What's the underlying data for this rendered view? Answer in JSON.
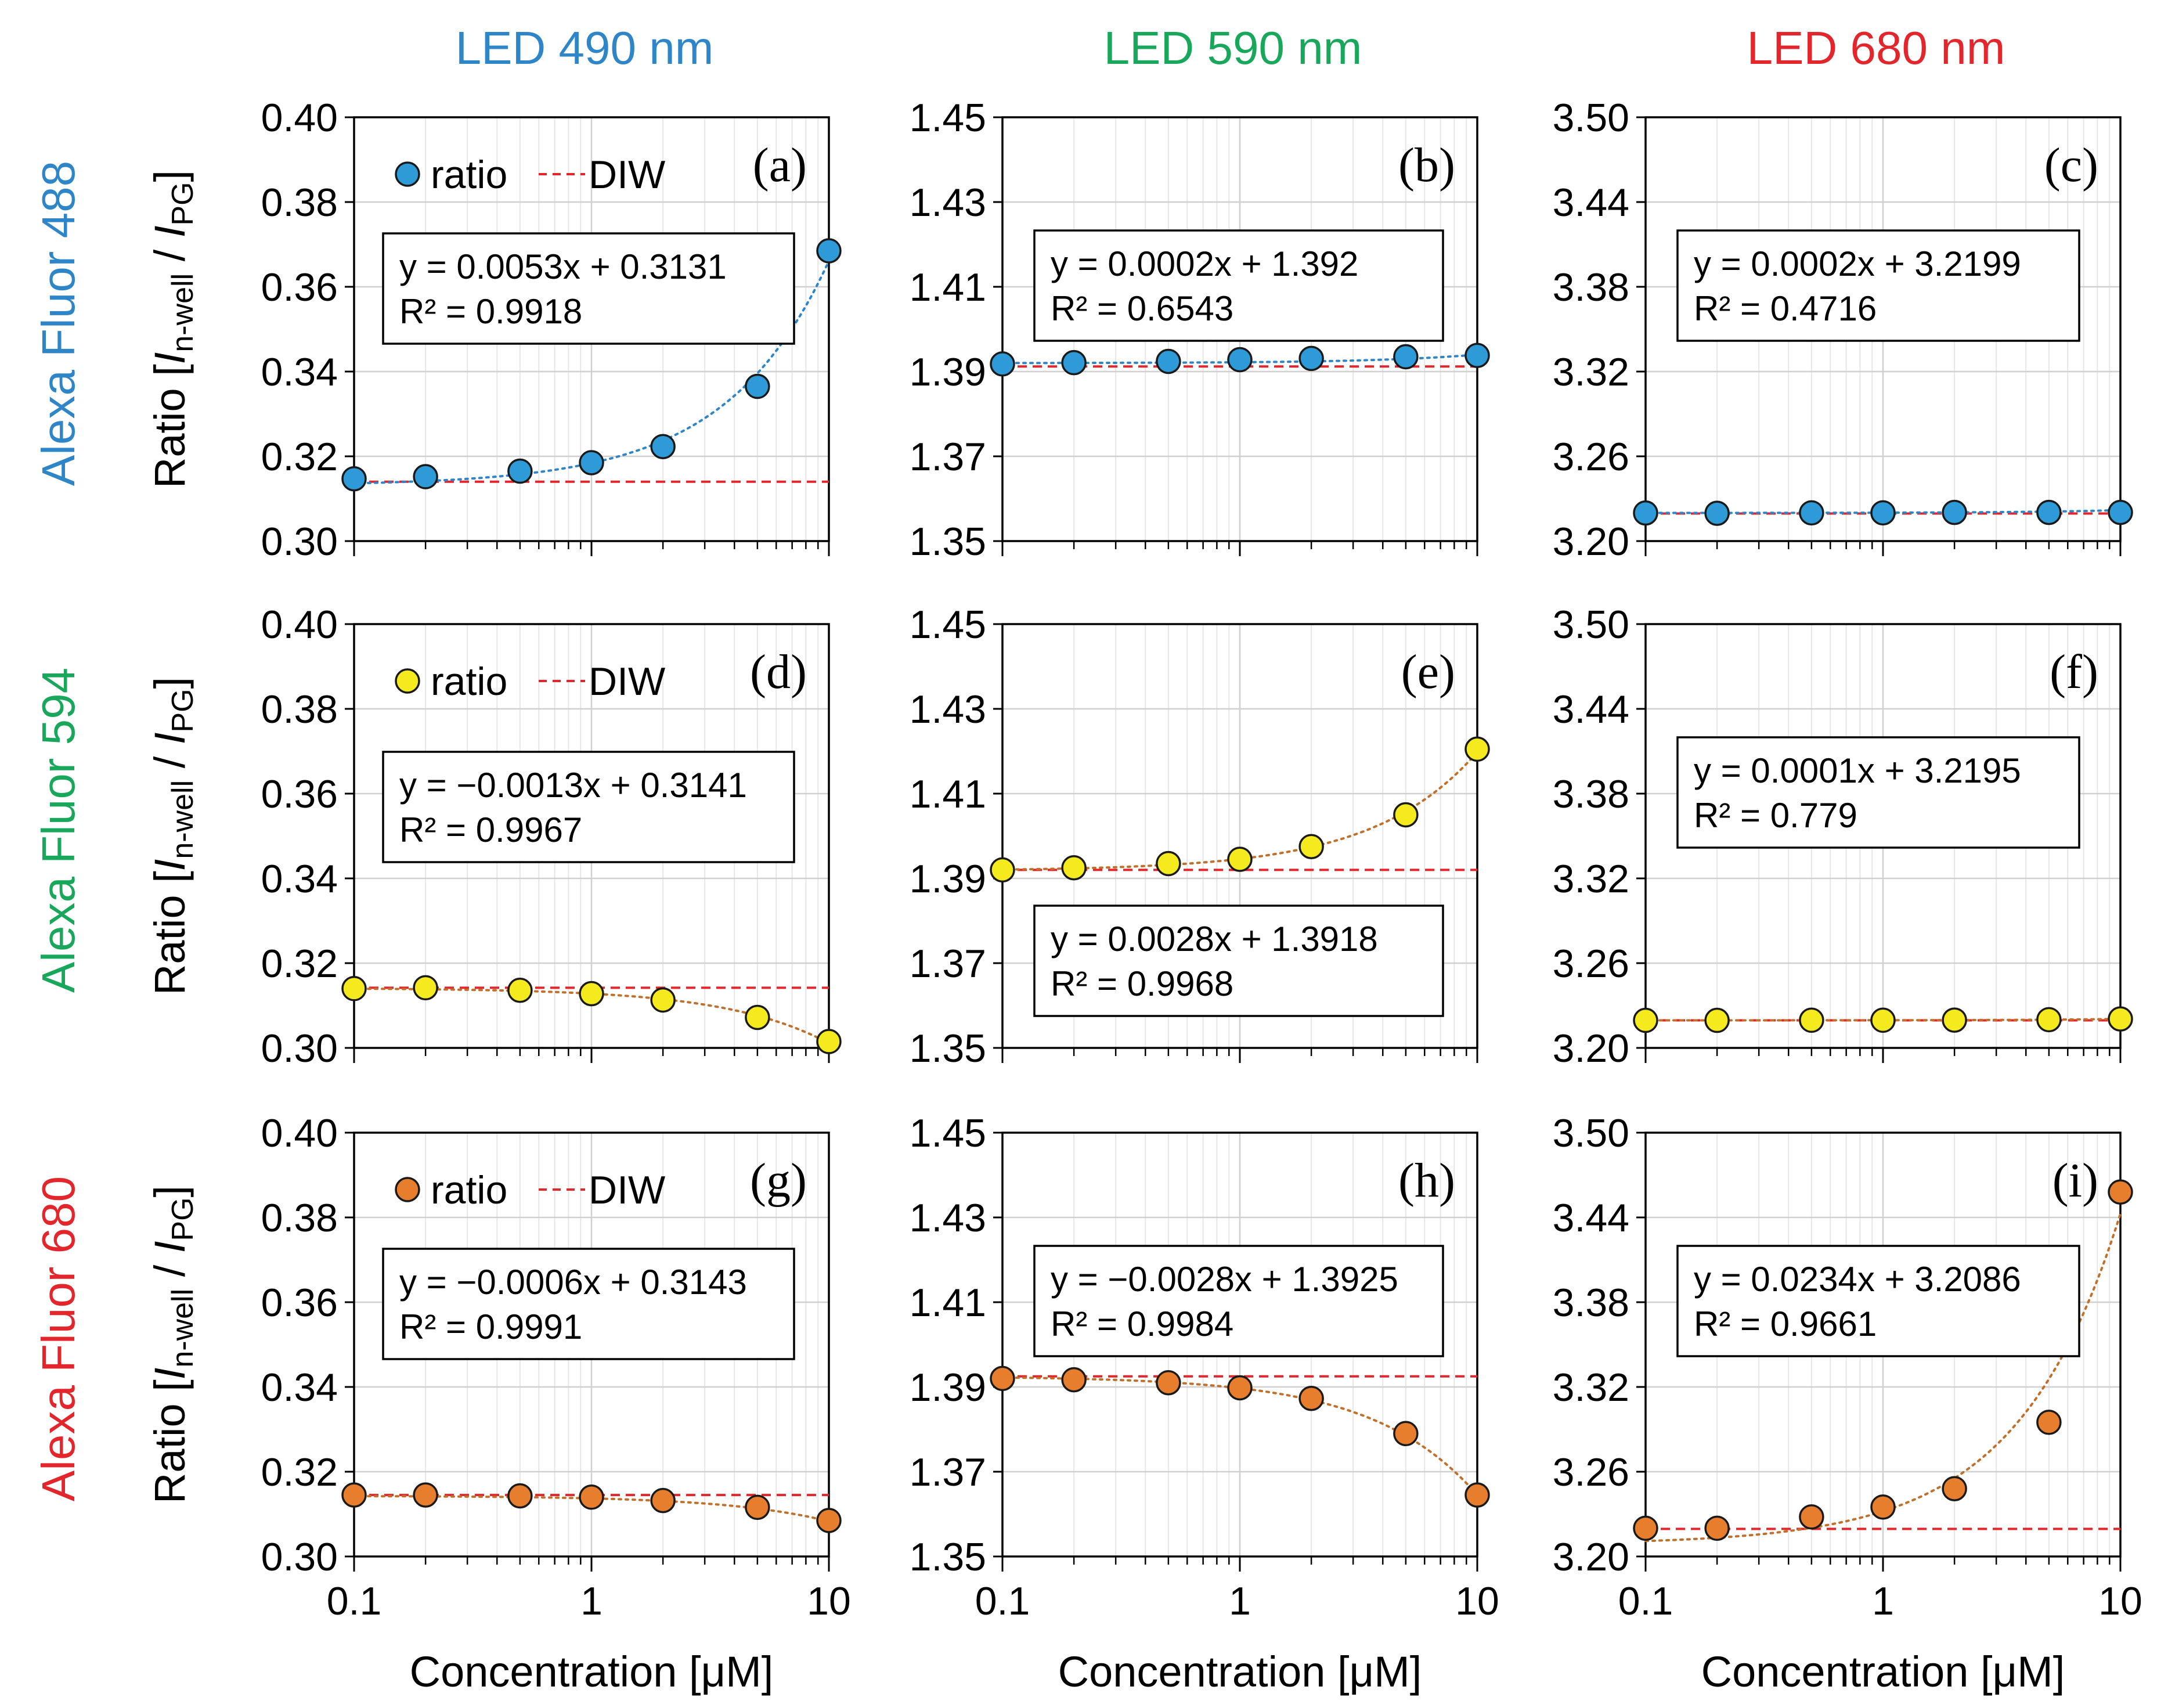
{
  "colors": {
    "blue": "#2E86C8",
    "green": "#19A85B",
    "red": "#E3262B",
    "marker_blue": "#2E9BD8",
    "marker_yellow": "#F5EA1E",
    "marker_orange": "#E67E2E",
    "trend_blue": "#2E86C8",
    "trend_orange": "#C0702A",
    "diw": "#E3262B",
    "axis": "#000000",
    "grid_major": "#D0D0D0",
    "grid_minor": "#E6E6E6"
  },
  "column_headers": [
    "LED 490 nm",
    "LED 590 nm",
    "LED 680 nm"
  ],
  "row_headers": [
    "Alexa Fluor 488",
    "Alexa Fluor 594",
    "Alexa Fluor 680"
  ],
  "ylabel": {
    "prefix": "Ratio [",
    "i1": "I",
    "sub1": "n-well",
    "mid": " / ",
    "i2": "I",
    "sub2": "PG",
    "suffix": "]"
  },
  "xlabel": "Concentration [μM]",
  "legend": {
    "ratio": "ratio",
    "diw": "DIW"
  },
  "x_ticks": [
    "0.1",
    "1",
    "10"
  ],
  "chart_data": [
    {
      "type": "scatter",
      "id": "a",
      "letter": "(a)",
      "row": 0,
      "col": 0,
      "x": [
        0.1,
        0.2,
        0.5,
        1,
        2,
        5,
        10
      ],
      "y": [
        0.3147,
        0.3152,
        0.3165,
        0.3185,
        0.3223,
        0.3365,
        0.3685
      ],
      "marker": "marker_blue",
      "trend": "trend_blue",
      "ylim": [
        0.3,
        0.4
      ],
      "yticks": [
        "0.30",
        "0.32",
        "0.34",
        "0.36",
        "0.38",
        "0.40"
      ],
      "diw": 0.314,
      "equation": "y = 0.0053x + 0.3131",
      "r2": "R² = 0.9918",
      "legend": true
    },
    {
      "type": "scatter",
      "id": "b",
      "letter": "(b)",
      "row": 0,
      "col": 1,
      "x": [
        0.1,
        0.2,
        0.5,
        1,
        2,
        5,
        10
      ],
      "y": [
        1.3918,
        1.3921,
        1.3924,
        1.3928,
        1.3931,
        1.3935,
        1.3938
      ],
      "marker": "marker_blue",
      "trend": "trend_blue",
      "ylim": [
        1.35,
        1.45
      ],
      "yticks": [
        "1.35",
        "1.37",
        "1.39",
        "1.41",
        "1.43",
        "1.45"
      ],
      "diw": 1.3912,
      "equation": "y = 0.0002x + 1.392",
      "r2": "R² = 0.6543",
      "legend": false
    },
    {
      "type": "scatter",
      "id": "c",
      "letter": "(c)",
      "row": 0,
      "col": 2,
      "x": [
        0.1,
        0.2,
        0.5,
        1,
        2,
        5,
        10
      ],
      "y": [
        3.2199,
        3.2197,
        3.22,
        3.22,
        3.2203,
        3.2203,
        3.2203
      ],
      "marker": "marker_blue",
      "trend": "trend_blue",
      "ylim": [
        3.2,
        3.5
      ],
      "yticks": [
        "3.20",
        "3.26",
        "3.32",
        "3.38",
        "3.44",
        "3.50"
      ],
      "diw": 3.2195,
      "equation": "y = 0.0002x + 3.2199",
      "r2": "R² = 0.4716",
      "legend": false
    },
    {
      "type": "scatter",
      "id": "d",
      "letter": "(d)",
      "row": 1,
      "col": 0,
      "x": [
        0.1,
        0.2,
        0.5,
        1,
        2,
        5,
        10
      ],
      "y": [
        0.314,
        0.3142,
        0.3136,
        0.3128,
        0.3113,
        0.3072,
        0.3015
      ],
      "marker": "marker_yellow",
      "trend": "trend_orange",
      "ylim": [
        0.3,
        0.4
      ],
      "yticks": [
        "0.30",
        "0.32",
        "0.34",
        "0.36",
        "0.38",
        "0.40"
      ],
      "diw": 0.3142,
      "equation": "y = −0.0013x + 0.3141",
      "r2": "R² = 0.9967",
      "legend": true
    },
    {
      "type": "scatter",
      "id": "e",
      "letter": "(e)",
      "row": 1,
      "col": 1,
      "x": [
        0.1,
        0.2,
        0.5,
        1,
        2,
        5,
        10
      ],
      "y": [
        1.392,
        1.3925,
        1.3935,
        1.3945,
        1.3975,
        1.405,
        1.4205
      ],
      "marker": "marker_yellow",
      "trend": "trend_orange",
      "ylim": [
        1.35,
        1.45
      ],
      "yticks": [
        "1.35",
        "1.37",
        "1.39",
        "1.41",
        "1.43",
        "1.45"
      ],
      "diw": 1.392,
      "equation": "y = 0.0028x + 1.3918",
      "r2": "R² = 0.9968",
      "legend": false
    },
    {
      "type": "scatter",
      "id": "f",
      "letter": "(f)",
      "row": 1,
      "col": 2,
      "x": [
        0.1,
        0.2,
        0.5,
        1,
        2,
        5,
        10
      ],
      "y": [
        3.2195,
        3.2195,
        3.2196,
        3.2196,
        3.2197,
        3.22,
        3.2205
      ],
      "marker": "marker_yellow",
      "trend": "trend_orange",
      "ylim": [
        3.2,
        3.5
      ],
      "yticks": [
        "3.20",
        "3.26",
        "3.32",
        "3.38",
        "3.44",
        "3.50"
      ],
      "diw": 3.2195,
      "equation": "y = 0.0001x + 3.2195",
      "r2": "R² = 0.779",
      "legend": false
    },
    {
      "type": "scatter",
      "id": "g",
      "letter": "(g)",
      "row": 2,
      "col": 0,
      "x": [
        0.1,
        0.2,
        0.5,
        1,
        2,
        5,
        10
      ],
      "y": [
        0.3145,
        0.3145,
        0.3143,
        0.314,
        0.3132,
        0.3116,
        0.3085
      ],
      "marker": "marker_orange",
      "trend": "trend_orange",
      "ylim": [
        0.3,
        0.4
      ],
      "yticks": [
        "0.30",
        "0.32",
        "0.34",
        "0.36",
        "0.38",
        "0.40"
      ],
      "diw": 0.3145,
      "equation": "y = −0.0006x + 0.3143",
      "r2": "R² = 0.9991",
      "legend": true
    },
    {
      "type": "scatter",
      "id": "h",
      "letter": "(h)",
      "row": 2,
      "col": 1,
      "x": [
        0.1,
        0.2,
        0.5,
        1,
        2,
        5,
        10
      ],
      "y": [
        1.392,
        1.3917,
        1.391,
        1.3898,
        1.3873,
        1.379,
        1.3645
      ],
      "marker": "marker_orange",
      "trend": "trend_orange",
      "ylim": [
        1.35,
        1.45
      ],
      "yticks": [
        "1.35",
        "1.37",
        "1.39",
        "1.41",
        "1.43",
        "1.45"
      ],
      "diw": 1.3925,
      "equation": "y = −0.0028x + 1.3925",
      "r2": "R² = 0.9984",
      "legend": false
    },
    {
      "type": "scatter",
      "id": "i",
      "letter": "(i)",
      "row": 2,
      "col": 2,
      "x": [
        0.1,
        0.2,
        0.5,
        1,
        2,
        5,
        10
      ],
      "y": [
        3.22,
        3.22,
        3.228,
        3.235,
        3.248,
        3.295,
        3.458
      ],
      "marker": "marker_orange",
      "trend": "trend_orange",
      "ylim": [
        3.2,
        3.5
      ],
      "yticks": [
        "3.20",
        "3.26",
        "3.32",
        "3.38",
        "3.44",
        "3.50"
      ],
      "diw": 3.2195,
      "equation": "y = 0.0234x + 3.2086",
      "r2": "R² = 0.9661",
      "legend": false
    }
  ]
}
